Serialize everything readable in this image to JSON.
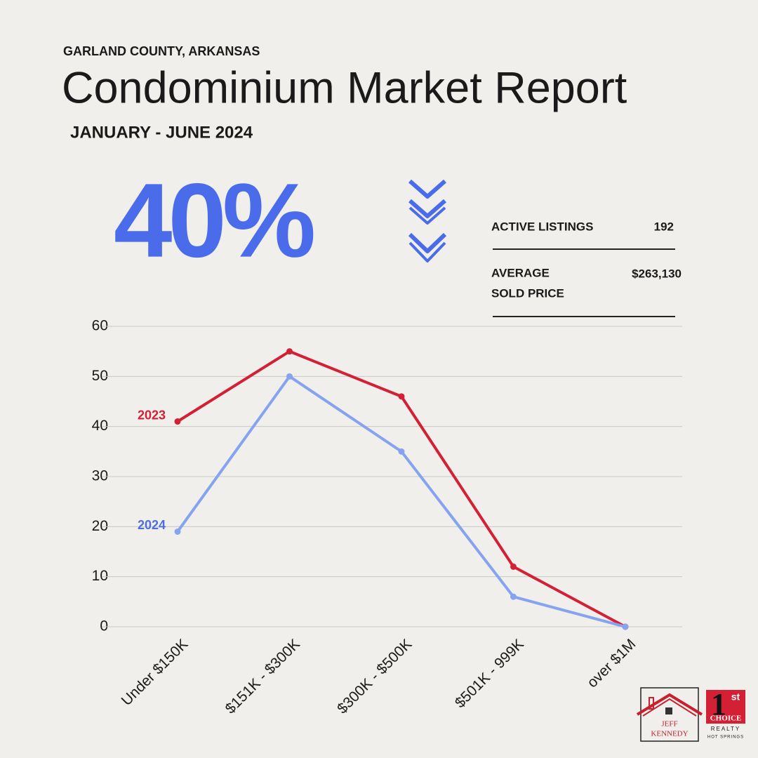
{
  "header": {
    "region": "GARLAND COUNTY, ARKANSAS",
    "title": "Condominium Market Report",
    "period": "JANUARY - JUNE 2024"
  },
  "headline": "40%",
  "stats": [
    {
      "label": "ACTIVE LISTINGS",
      "value": "192"
    },
    {
      "label": [
        "AVERAGE",
        "SOLD PRICE"
      ],
      "value": "$263,130"
    }
  ],
  "logos": {
    "agent": [
      "JEFF",
      "KENNEDY"
    ],
    "brand": {
      "mark": "1",
      "sup": "st",
      "name": "CHOICE",
      "sub": "REALTY",
      "place": "HOT SPRINGS"
    }
  },
  "chart_data": {
    "type": "line",
    "categories": [
      "Under $150K",
      "$151K - $300K",
      "$300K - $500K",
      "$501K - 999K",
      "over $1M"
    ],
    "series": [
      {
        "name": "2023",
        "color": "#d42035",
        "values": [
          41,
          55,
          46,
          12,
          0
        ]
      },
      {
        "name": "2024",
        "color": "#86a3f0",
        "label_color": "#4b6fe0",
        "values": [
          19,
          50,
          35,
          6,
          0
        ]
      }
    ],
    "ylim": [
      0,
      60
    ],
    "yticks": [
      0,
      10,
      20,
      30,
      40,
      50,
      60
    ],
    "grid": true
  }
}
